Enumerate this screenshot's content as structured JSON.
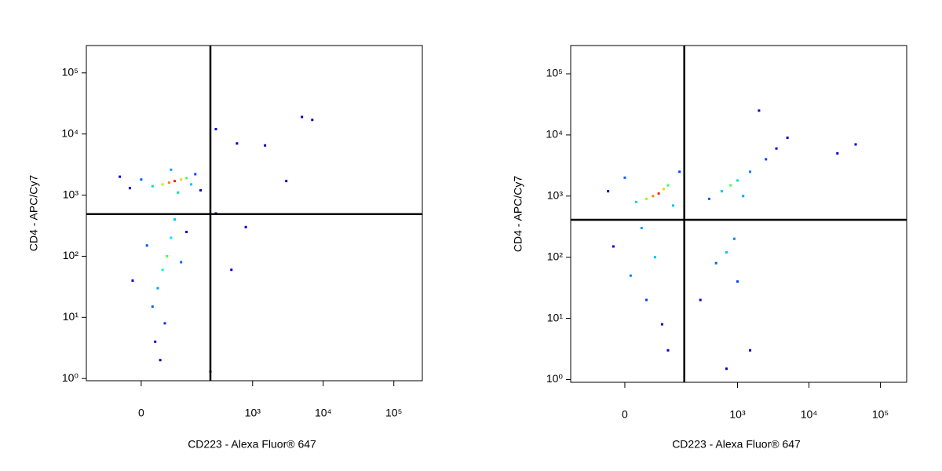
{
  "chart_data": [
    {
      "type": "scatter",
      "xscale": "biexponential",
      "yscale": "log",
      "x_label": "CD223 - Alexa Fluor® 647",
      "y_label": "CD4 - APC/Cy7",
      "xlim": [
        -154,
        253000
      ],
      "ylim": [
        0.92,
        280000
      ],
      "xticks": [
        0,
        {
          "value": 1000,
          "label": "10³"
        },
        {
          "value": 10000,
          "label": "10⁴"
        },
        {
          "value": 100000,
          "label": "10⁵"
        }
      ],
      "yticks": [
        {
          "value": 1,
          "label": "10⁰"
        },
        {
          "value": 10,
          "label": "10¹"
        },
        {
          "value": 100,
          "label": "10²"
        },
        {
          "value": 1000,
          "label": "10³"
        },
        {
          "value": 10000,
          "label": "10⁴"
        },
        {
          "value": 100000,
          "label": "10⁵"
        }
      ],
      "gates": {
        "x": 250,
        "y": 490
      },
      "x": [
        70,
        55,
        90,
        40,
        110,
        20,
        130,
        0,
        -20,
        150,
        60,
        80,
        -40,
        180,
        50,
        40,
        60,
        30,
        70,
        20,
        45,
        10,
        90,
        25,
        -15,
        110,
        35,
        300,
        600,
        1500,
        5000,
        7000,
        300,
        800,
        500,
        3000,
        250
      ],
      "values": [
        1700,
        1600,
        1800,
        1500,
        1900,
        1400,
        1500,
        1800,
        1300,
        2200,
        2600,
        1100,
        2000,
        1200,
        100,
        60,
        200,
        30,
        400,
        15,
        8,
        150,
        80,
        4,
        40,
        250,
        2,
        12000,
        7000,
        6500,
        19000,
        17000,
        500,
        300,
        60,
        1700,
        1.3
      ],
      "colors": [
        "#ff2000",
        "#ff8000",
        "#ffd000",
        "#a0ff00",
        "#40ff60",
        "#00e0c0",
        "#00c0ff",
        "#0060ff",
        "#0000e0",
        "#0040ff",
        "#00a0ff",
        "#00e0a0",
        "#0000c0",
        "#0000c0",
        "#40ff40",
        "#00ffc0",
        "#00e0ff",
        "#00a0ff",
        "#00c0ff",
        "#0060ff",
        "#0030e0",
        "#0050ff",
        "#0060ff",
        "#0000c0",
        "#0000d0",
        "#0000e0",
        "#0000a0",
        "#0000c0",
        "#0000c0",
        "#0000c0",
        "#0000c0",
        "#0000c0",
        "#0000c0",
        "#0000c0",
        "#0000c0",
        "#0000c0",
        "#0000c0"
      ]
    },
    {
      "type": "scatter",
      "xscale": "biexponential",
      "yscale": "log",
      "x_label": "CD223 - Alexa Fluor® 647",
      "y_label": "CD4 - APC/Cy7",
      "xlim": [
        -147,
        233000
      ],
      "ylim": [
        0.9,
        290000
      ],
      "xticks": [
        0,
        {
          "value": 1000,
          "label": "10³"
        },
        {
          "value": 10000,
          "label": "10⁴"
        },
        {
          "value": 100000,
          "label": "10⁵"
        }
      ],
      "yticks": [
        {
          "value": 1,
          "label": "10⁰"
        },
        {
          "value": 10,
          "label": "10¹"
        },
        {
          "value": 100,
          "label": "10²"
        },
        {
          "value": 1000,
          "label": "10³"
        },
        {
          "value": 10000,
          "label": "10⁴"
        },
        {
          "value": 100000,
          "label": "10⁵"
        }
      ],
      "gates": {
        "x": 176,
        "y": 410
      },
      "x": [
        70,
        55,
        85,
        40,
        100,
        20,
        120,
        0,
        -30,
        150,
        30,
        60,
        10,
        40,
        80,
        -20,
        100,
        800,
        1000,
        600,
        1500,
        2500,
        400,
        3500,
        1200,
        700,
        900,
        500,
        1000,
        300,
        5000,
        25000,
        45000,
        2000,
        700,
        1500
      ],
      "values": [
        1100,
        1000,
        1300,
        900,
        1500,
        800,
        700,
        2000,
        1200,
        2500,
        300,
        100,
        50,
        20,
        8,
        150,
        3,
        1500,
        1800,
        1200,
        2500,
        4000,
        900,
        6000,
        1000,
        120,
        200,
        80,
        40,
        20,
        9000,
        5000,
        7000,
        25000,
        1.5,
        3
      ],
      "colors": [
        "#ff2000",
        "#ff8000",
        "#ffd000",
        "#a0ff00",
        "#40ff60",
        "#00e0c0",
        "#00c0ff",
        "#0060ff",
        "#0000e0",
        "#0040ff",
        "#00a0ff",
        "#00c0ff",
        "#0080ff",
        "#0040ff",
        "#0000e0",
        "#0000d0",
        "#0000c0",
        "#40ff60",
        "#00e0c0",
        "#00c0ff",
        "#0080ff",
        "#0040ff",
        "#0060ff",
        "#0000e0",
        "#00a0ff",
        "#00c0ff",
        "#0080ff",
        "#0060ff",
        "#0040ff",
        "#0000e0",
        "#0000c0",
        "#0000c0",
        "#0000c0",
        "#0000c0",
        "#0000c0",
        "#0000c0"
      ]
    }
  ]
}
